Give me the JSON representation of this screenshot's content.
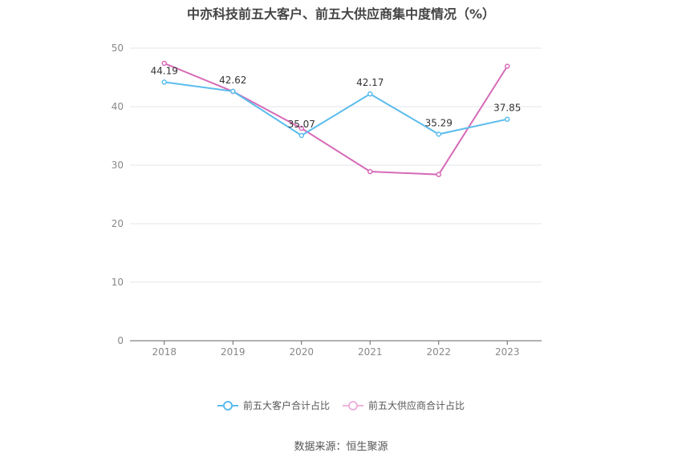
{
  "chart_data": {
    "type": "line",
    "title": "中亦科技前五大客户、前五大供应商集中度情况（%）",
    "categories": [
      "2018",
      "2019",
      "2020",
      "2021",
      "2022",
      "2023"
    ],
    "ylim": [
      0,
      50
    ],
    "yticks": [
      0,
      10,
      20,
      30,
      40,
      50
    ],
    "grid": true,
    "legend_position": "bottom",
    "series": [
      {
        "name": "前五大客户合计占比",
        "values": [
          44.19,
          42.62,
          35.07,
          42.17,
          35.29,
          37.85
        ],
        "labels": [
          "44.19",
          "42.62",
          "35.07",
          "42.17",
          "35.29",
          "37.85"
        ],
        "color": "#5bbcec"
      },
      {
        "name": "前五大供应商合计占比",
        "values": [
          47.4,
          42.6,
          36.3,
          28.9,
          28.4,
          46.9
        ],
        "color": "#d66bb7"
      }
    ]
  },
  "source": "数据来源：恒生聚源"
}
